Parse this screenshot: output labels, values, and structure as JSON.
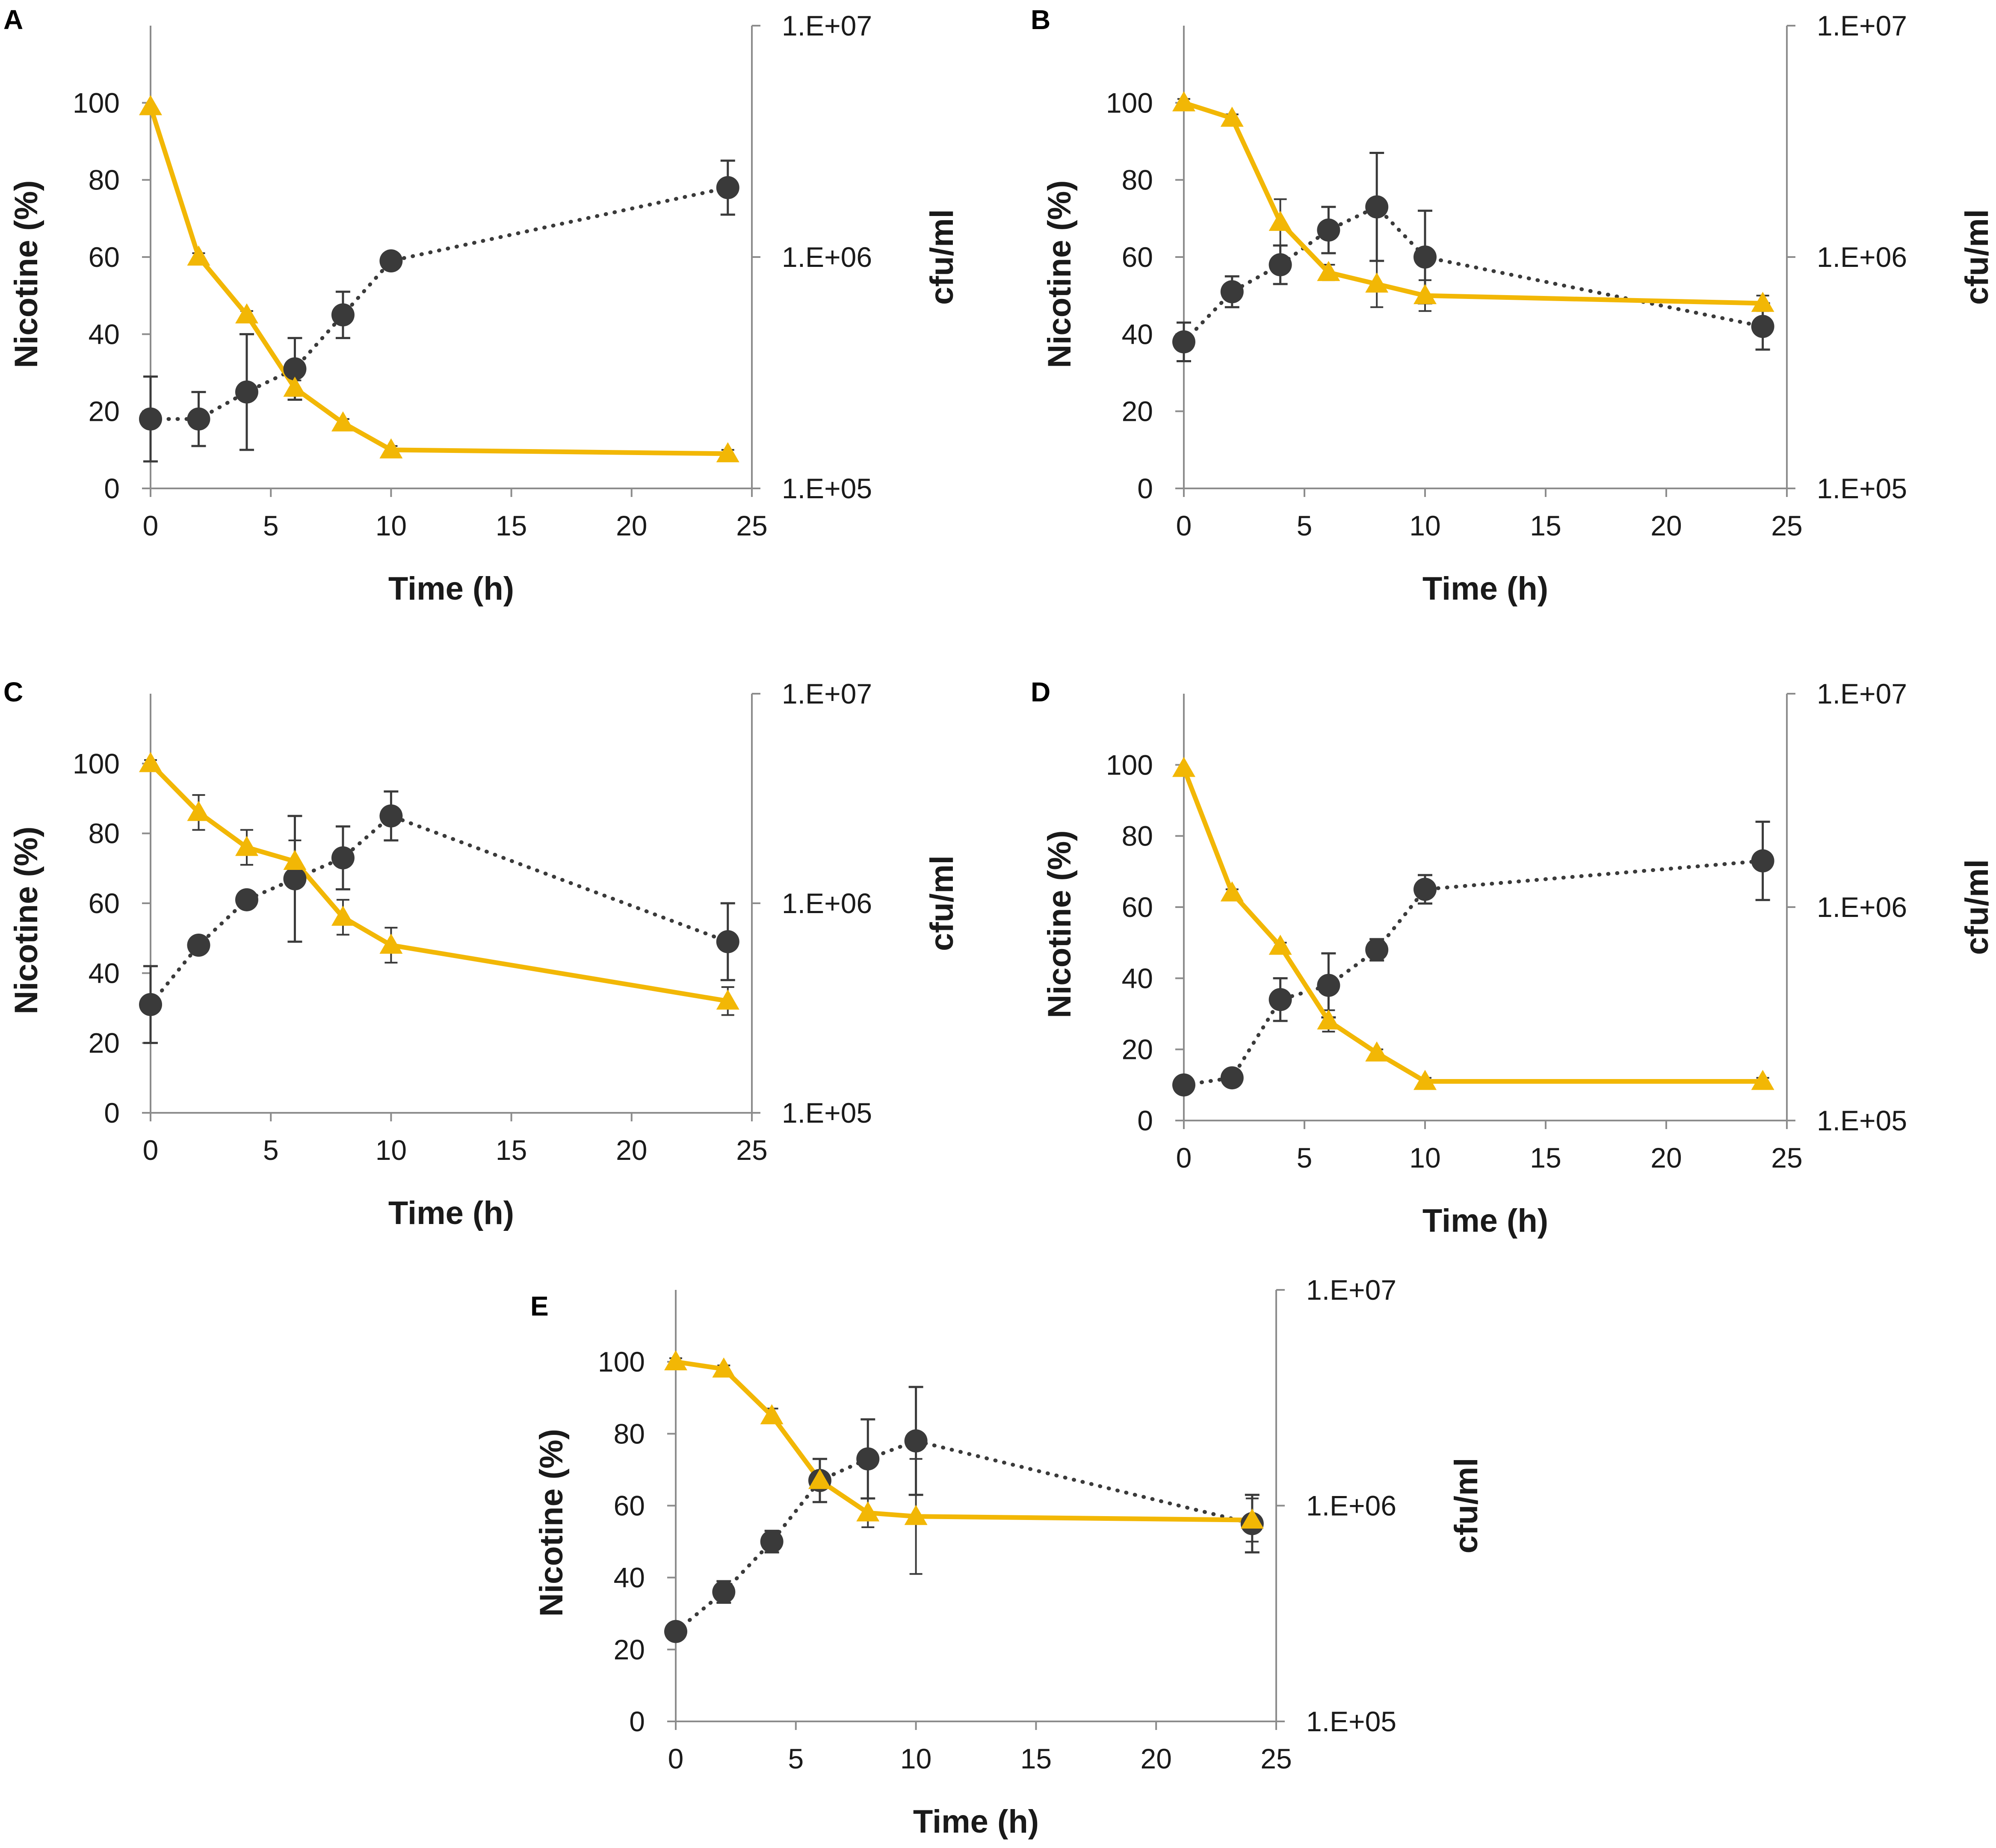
{
  "figure": {
    "colors": {
      "nicotine": "#f2b705",
      "cfu": "#3a3a3a",
      "axis": "#8c8c8c",
      "text": "#1a1a1a"
    }
  },
  "chart_data": [
    {
      "panel": "A",
      "type": "line",
      "xlabel": "Time (h)",
      "ylabel_left": "Nicotine (%)",
      "ylabel_right": "cfu/ml",
      "xlim": [
        0,
        25
      ],
      "xticks": [
        0,
        5,
        10,
        15,
        20,
        25
      ],
      "ylim_left": [
        0,
        120
      ],
      "yticks_left": [
        0,
        20,
        40,
        60,
        80,
        100
      ],
      "ylim_right": [
        100000,
        10000000
      ],
      "yticks_right": [
        "1.E+05",
        "1.E+06",
        "1.E+07"
      ],
      "series": [
        {
          "name": "Nicotine",
          "axis": "left",
          "marker": "triangle",
          "style": "solid",
          "x": [
            0,
            2,
            4,
            6,
            8,
            10,
            24
          ],
          "values": [
            99,
            60,
            45,
            26,
            17,
            10,
            9
          ],
          "err": [
            0,
            1,
            1,
            2,
            1,
            1,
            1
          ]
        },
        {
          "name": "cfu/ml",
          "axis": "right",
          "marker": "circle",
          "style": "dotted",
          "x": [
            0,
            2,
            4,
            6,
            8,
            10,
            24
          ],
          "values_left_scale": [
            18,
            18,
            25,
            31,
            45,
            59,
            78
          ],
          "err": [
            11,
            7,
            15,
            8,
            6,
            1,
            7
          ]
        }
      ]
    },
    {
      "panel": "B",
      "type": "line",
      "xlabel": "Time (h)",
      "ylabel_left": "Nicotine (%)",
      "ylabel_right": "cfu/ml",
      "xlim": [
        0,
        25
      ],
      "xticks": [
        0,
        5,
        10,
        15,
        20,
        25
      ],
      "ylim_left": [
        0,
        120
      ],
      "yticks_left": [
        0,
        20,
        40,
        60,
        80,
        100
      ],
      "ylim_right": [
        100000,
        10000000
      ],
      "yticks_right": [
        "1.E+05",
        "1.E+06",
        "1.E+07"
      ],
      "series": [
        {
          "name": "Nicotine",
          "axis": "left",
          "marker": "triangle",
          "style": "solid",
          "x": [
            0,
            2,
            4,
            6,
            8,
            10,
            24
          ],
          "values": [
            100,
            96,
            69,
            56,
            53,
            50,
            48
          ],
          "err": [
            1,
            1,
            6,
            2,
            6,
            4,
            2
          ]
        },
        {
          "name": "cfu/ml",
          "axis": "right",
          "marker": "circle",
          "style": "dotted",
          "x": [
            0,
            2,
            4,
            6,
            8,
            10,
            24
          ],
          "values_left_scale": [
            38,
            51,
            58,
            67,
            73,
            60,
            42
          ],
          "err": [
            5,
            4,
            5,
            6,
            14,
            12,
            6
          ]
        }
      ]
    },
    {
      "panel": "C",
      "type": "line",
      "xlabel": "Time (h)",
      "ylabel_left": "Nicotine (%)",
      "ylabel_right": "cfu/ml",
      "xlim": [
        0,
        25
      ],
      "xticks": [
        0,
        5,
        10,
        15,
        20,
        25
      ],
      "ylim_left": [
        0,
        120
      ],
      "yticks_left": [
        0,
        20,
        40,
        60,
        80,
        100
      ],
      "ylim_right": [
        100000,
        10000000
      ],
      "yticks_right": [
        "1.E+05",
        "1.E+06",
        "1.E+07"
      ],
      "series": [
        {
          "name": "Nicotine",
          "axis": "left",
          "marker": "triangle",
          "style": "solid",
          "x": [
            0,
            2,
            4,
            6,
            8,
            10,
            24
          ],
          "values": [
            100,
            86,
            76,
            72,
            56,
            48,
            32
          ],
          "err": [
            1,
            5,
            5,
            6,
            5,
            5,
            4
          ]
        },
        {
          "name": "cfu/ml",
          "axis": "right",
          "marker": "circle",
          "style": "dotted",
          "x": [
            0,
            2,
            4,
            6,
            8,
            10,
            24
          ],
          "values_left_scale": [
            31,
            48,
            61,
            67,
            73,
            85,
            49
          ],
          "err": [
            11,
            1,
            1,
            18,
            9,
            7,
            11
          ]
        }
      ]
    },
    {
      "panel": "D",
      "type": "line",
      "xlabel": "Time (h)",
      "ylabel_left": "Nicotine (%)",
      "ylabel_right": "cfu/ml",
      "xlim": [
        0,
        25
      ],
      "xticks": [
        0,
        5,
        10,
        15,
        20,
        25
      ],
      "ylim_left": [
        0,
        120
      ],
      "yticks_left": [
        0,
        20,
        40,
        60,
        80,
        100
      ],
      "ylim_right": [
        100000,
        10000000
      ],
      "yticks_right": [
        "1.E+05",
        "1.E+06",
        "1.E+07"
      ],
      "series": [
        {
          "name": "Nicotine",
          "axis": "left",
          "marker": "triangle",
          "style": "solid",
          "x": [
            0,
            2,
            4,
            6,
            8,
            10,
            24
          ],
          "values": [
            99,
            64,
            49,
            28,
            19,
            11,
            11
          ],
          "err": [
            0,
            1,
            1,
            3,
            1,
            1,
            1
          ]
        },
        {
          "name": "cfu/ml",
          "axis": "right",
          "marker": "circle",
          "style": "dotted",
          "x": [
            0,
            2,
            4,
            6,
            8,
            10,
            24
          ],
          "values_left_scale": [
            10,
            12,
            34,
            38,
            48,
            65,
            73
          ],
          "err": [
            1,
            1,
            6,
            9,
            3,
            4,
            11
          ]
        }
      ]
    },
    {
      "panel": "E",
      "type": "line",
      "xlabel": "Time (h)",
      "ylabel_left": "Nicotine (%)",
      "ylabel_right": "cfu/ml",
      "xlim": [
        0,
        25
      ],
      "xticks": [
        0,
        5,
        10,
        15,
        20,
        25
      ],
      "ylim_left": [
        0,
        120
      ],
      "yticks_left": [
        0,
        20,
        40,
        60,
        80,
        100
      ],
      "ylim_right": [
        100000,
        10000000
      ],
      "yticks_right": [
        "1.E+05",
        "1.E+06",
        "1.E+07"
      ],
      "series": [
        {
          "name": "Nicotine",
          "axis": "left",
          "marker": "triangle",
          "style": "solid",
          "x": [
            0,
            2,
            4,
            6,
            8,
            10,
            24
          ],
          "values": [
            100,
            98,
            85,
            67,
            58,
            57,
            56
          ],
          "err": [
            1,
            1,
            2,
            6,
            4,
            16,
            6
          ]
        },
        {
          "name": "cfu/ml",
          "axis": "right",
          "marker": "circle",
          "style": "dotted",
          "x": [
            0,
            2,
            4,
            6,
            8,
            10,
            24
          ],
          "values_left_scale": [
            25,
            36,
            50,
            67,
            73,
            78,
            55
          ],
          "err": [
            2,
            3,
            3,
            6,
            11,
            15,
            8
          ]
        }
      ]
    }
  ]
}
